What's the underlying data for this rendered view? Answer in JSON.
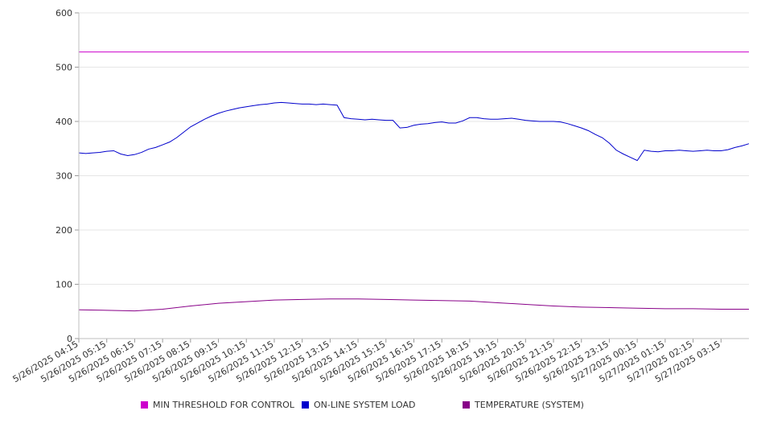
{
  "chart_data": {
    "type": "line",
    "title": "",
    "xlabel": "",
    "ylabel": "",
    "ylim": [
      0,
      600
    ],
    "yticks": [
      0,
      100,
      200,
      300,
      400,
      500,
      600
    ],
    "grid": true,
    "legend_position": "bottom",
    "x_tick_labels": [
      "5/26/2025 04:15",
      "5/26/2025 05:15",
      "5/26/2025 06:15",
      "5/26/2025 07:15",
      "5/26/2025 08:15",
      "5/26/2025 09:15",
      "5/26/2025 10:15",
      "5/26/2025 11:15",
      "5/26/2025 12:15",
      "5/26/2025 13:15",
      "5/26/2025 14:15",
      "5/26/2025 15:15",
      "5/26/2025 16:15",
      "5/26/2025 17:15",
      "5/26/2025 18:15",
      "5/26/2025 19:15",
      "5/26/2025 20:15",
      "5/26/2025 21:15",
      "5/26/2025 22:15",
      "5/26/2025 23:15",
      "5/27/2025 00:15",
      "5/27/2025 01:15",
      "5/27/2025 02:15",
      "5/27/2025 03:15"
    ],
    "x_range": [
      "5/26/2025 04:15",
      "5/27/2025 04:15"
    ],
    "series": [
      {
        "name": "MIN THRESHOLD FOR CONTROL",
        "color": "#cc00cc",
        "points": [
          [
            "5/26/2025 04:15",
            528
          ],
          [
            "5/27/2025 04:15",
            528
          ]
        ]
      },
      {
        "name": "ON-LINE SYSTEM LOAD",
        "color": "#0000cc",
        "points": [
          [
            "5/26/2025 04:15",
            342
          ],
          [
            "5/26/2025 04:30",
            341
          ],
          [
            "5/26/2025 04:45",
            342
          ],
          [
            "5/26/2025 05:00",
            343
          ],
          [
            "5/26/2025 05:15",
            345
          ],
          [
            "5/26/2025 05:30",
            346
          ],
          [
            "5/26/2025 05:45",
            340
          ],
          [
            "5/26/2025 06:00",
            337
          ],
          [
            "5/26/2025 06:15",
            339
          ],
          [
            "5/26/2025 06:30",
            343
          ],
          [
            "5/26/2025 06:45",
            349
          ],
          [
            "5/26/2025 07:00",
            352
          ],
          [
            "5/26/2025 07:15",
            357
          ],
          [
            "5/26/2025 07:30",
            362
          ],
          [
            "5/26/2025 07:45",
            370
          ],
          [
            "5/26/2025 08:00",
            380
          ],
          [
            "5/26/2025 08:15",
            390
          ],
          [
            "5/26/2025 08:30",
            397
          ],
          [
            "5/26/2025 08:45",
            404
          ],
          [
            "5/26/2025 09:00",
            410
          ],
          [
            "5/26/2025 09:15",
            415
          ],
          [
            "5/26/2025 09:30",
            419
          ],
          [
            "5/26/2025 09:45",
            422
          ],
          [
            "5/26/2025 10:00",
            425
          ],
          [
            "5/26/2025 10:15",
            427
          ],
          [
            "5/26/2025 10:30",
            429
          ],
          [
            "5/26/2025 10:45",
            431
          ],
          [
            "5/26/2025 11:00",
            432
          ],
          [
            "5/26/2025 11:15",
            434
          ],
          [
            "5/26/2025 11:30",
            435
          ],
          [
            "5/26/2025 11:45",
            434
          ],
          [
            "5/26/2025 12:00",
            433
          ],
          [
            "5/26/2025 12:15",
            432
          ],
          [
            "5/26/2025 12:30",
            432
          ],
          [
            "5/26/2025 12:45",
            431
          ],
          [
            "5/26/2025 13:00",
            432
          ],
          [
            "5/26/2025 13:15",
            431
          ],
          [
            "5/26/2025 13:30",
            430
          ],
          [
            "5/26/2025 13:45",
            407
          ],
          [
            "5/26/2025 14:00",
            405
          ],
          [
            "5/26/2025 14:15",
            404
          ],
          [
            "5/26/2025 14:30",
            403
          ],
          [
            "5/26/2025 14:45",
            404
          ],
          [
            "5/26/2025 15:00",
            403
          ],
          [
            "5/26/2025 15:15",
            402
          ],
          [
            "5/26/2025 15:30",
            402
          ],
          [
            "5/26/2025 15:45",
            388
          ],
          [
            "5/26/2025 16:00",
            389
          ],
          [
            "5/26/2025 16:15",
            393
          ],
          [
            "5/26/2025 16:30",
            395
          ],
          [
            "5/26/2025 16:45",
            396
          ],
          [
            "5/26/2025 17:00",
            398
          ],
          [
            "5/26/2025 17:15",
            399
          ],
          [
            "5/26/2025 17:30",
            397
          ],
          [
            "5/26/2025 17:45",
            397
          ],
          [
            "5/26/2025 18:00",
            401
          ],
          [
            "5/26/2025 18:15",
            407
          ],
          [
            "5/26/2025 18:30",
            407
          ],
          [
            "5/26/2025 18:45",
            405
          ],
          [
            "5/26/2025 19:00",
            404
          ],
          [
            "5/26/2025 19:15",
            404
          ],
          [
            "5/26/2025 19:30",
            405
          ],
          [
            "5/26/2025 19:45",
            406
          ],
          [
            "5/26/2025 20:00",
            404
          ],
          [
            "5/26/2025 20:15",
            402
          ],
          [
            "5/26/2025 20:30",
            401
          ],
          [
            "5/26/2025 20:45",
            400
          ],
          [
            "5/26/2025 21:00",
            400
          ],
          [
            "5/26/2025 21:15",
            400
          ],
          [
            "5/26/2025 21:30",
            399
          ],
          [
            "5/26/2025 21:45",
            396
          ],
          [
            "5/26/2025 22:00",
            392
          ],
          [
            "5/26/2025 22:15",
            388
          ],
          [
            "5/26/2025 22:30",
            383
          ],
          [
            "5/26/2025 22:45",
            376
          ],
          [
            "5/26/2025 23:00",
            370
          ],
          [
            "5/26/2025 23:15",
            360
          ],
          [
            "5/26/2025 23:30",
            347
          ],
          [
            "5/26/2025 23:45",
            340
          ],
          [
            "5/27/2025 00:00",
            334
          ],
          [
            "5/27/2025 00:15",
            328
          ],
          [
            "5/27/2025 00:30",
            347
          ],
          [
            "5/27/2025 00:45",
            345
          ],
          [
            "5/27/2025 01:00",
            344
          ],
          [
            "5/27/2025 01:15",
            346
          ],
          [
            "5/27/2025 01:30",
            346
          ],
          [
            "5/27/2025 01:45",
            347
          ],
          [
            "5/27/2025 02:00",
            346
          ],
          [
            "5/27/2025 02:15",
            345
          ],
          [
            "5/27/2025 02:30",
            346
          ],
          [
            "5/27/2025 02:45",
            347
          ],
          [
            "5/27/2025 03:00",
            346
          ],
          [
            "5/27/2025 03:15",
            346
          ],
          [
            "5/27/2025 03:30",
            348
          ],
          [
            "5/27/2025 03:45",
            352
          ],
          [
            "5/27/2025 04:00",
            355
          ],
          [
            "5/27/2025 04:15",
            359
          ]
        ]
      },
      {
        "name": "TEMPERATURE (SYSTEM)",
        "color": "#880088",
        "points": [
          [
            "5/26/2025 04:15",
            53
          ],
          [
            "5/26/2025 05:15",
            52
          ],
          [
            "5/26/2025 06:15",
            51
          ],
          [
            "5/26/2025 07:15",
            54
          ],
          [
            "5/26/2025 08:15",
            60
          ],
          [
            "5/26/2025 09:15",
            65
          ],
          [
            "5/26/2025 10:15",
            68
          ],
          [
            "5/26/2025 11:15",
            71
          ],
          [
            "5/26/2025 12:15",
            72
          ],
          [
            "5/26/2025 13:15",
            73
          ],
          [
            "5/26/2025 14:15",
            73
          ],
          [
            "5/26/2025 15:15",
            72
          ],
          [
            "5/26/2025 16:15",
            71
          ],
          [
            "5/26/2025 17:15",
            70
          ],
          [
            "5/26/2025 18:15",
            69
          ],
          [
            "5/26/2025 19:15",
            66
          ],
          [
            "5/26/2025 20:15",
            63
          ],
          [
            "5/26/2025 21:15",
            60
          ],
          [
            "5/26/2025 22:15",
            58
          ],
          [
            "5/26/2025 23:15",
            57
          ],
          [
            "5/27/2025 00:15",
            56
          ],
          [
            "5/27/2025 01:15",
            55
          ],
          [
            "5/27/2025 02:15",
            55
          ],
          [
            "5/27/2025 03:15",
            54
          ],
          [
            "5/27/2025 04:15",
            54
          ]
        ]
      }
    ]
  }
}
